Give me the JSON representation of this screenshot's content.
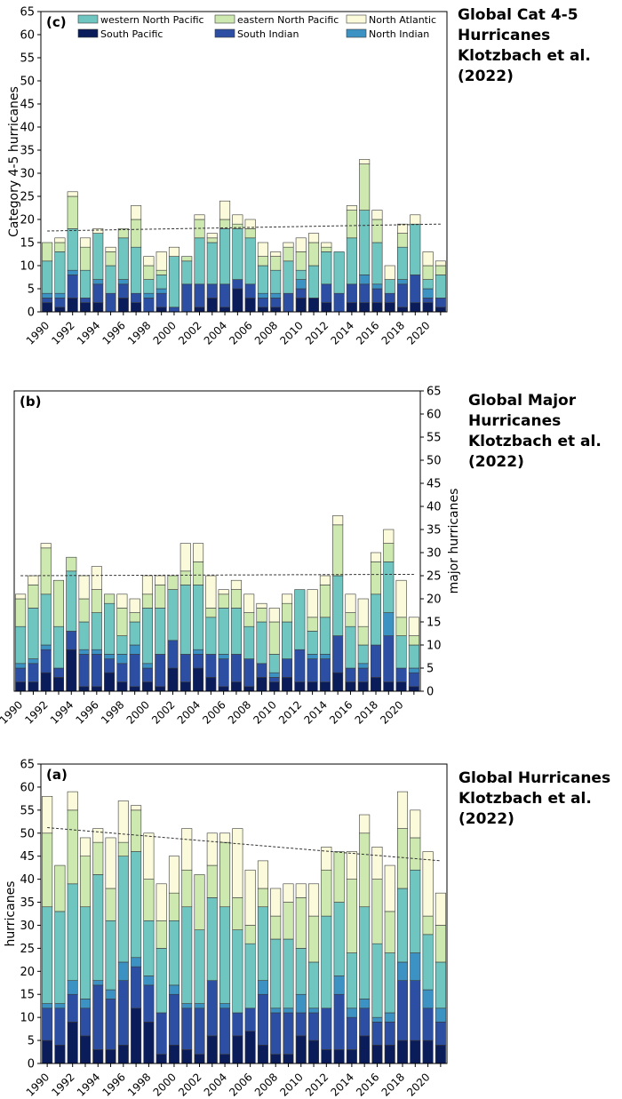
{
  "chart_data": [
    {
      "type": "bar",
      "stacked": true,
      "panel_label": "(c)",
      "side_title": "Global Cat 4-5\nHurricanes\nKlotzbach et al.\n(2022)",
      "xlabel": "",
      "ylabel": "Category 4-5 hurricanes",
      "y_axis_side": "left",
      "legend": "top, three columns",
      "ylim": [
        0,
        65
      ],
      "yticks": [
        0,
        5,
        10,
        15,
        20,
        25,
        30,
        35,
        40,
        45,
        50,
        55,
        60,
        65
      ],
      "trend": [
        17.5,
        19.0
      ],
      "categories": [
        1990,
        1991,
        1992,
        1993,
        1994,
        1995,
        1996,
        1997,
        1998,
        1999,
        2000,
        2001,
        2002,
        2003,
        2004,
        2005,
        2006,
        2007,
        2008,
        2009,
        2010,
        2011,
        2012,
        2013,
        2014,
        2015,
        2016,
        2017,
        2018,
        2019,
        2020,
        2021
      ],
      "xticks": [
        "1990",
        "1992",
        "1994",
        "1996",
        "1998",
        "2000",
        "2002",
        "2004",
        "2006",
        "2008",
        "2010",
        "2012",
        "2014",
        "2016",
        "2018",
        "2020"
      ],
      "series": [
        {
          "name": "South Pacific",
          "color": "#0b1c5a",
          "values": [
            2,
            1,
            3,
            2,
            2,
            0,
            3,
            2,
            0,
            1,
            0,
            0,
            1,
            3,
            1,
            5,
            3,
            1,
            1,
            0,
            3,
            3,
            2,
            0,
            2,
            2,
            2,
            2,
            1,
            2,
            2,
            1
          ]
        },
        {
          "name": "South Indian",
          "color": "#2c4fa3",
          "values": [
            1,
            2,
            5,
            1,
            4,
            4,
            3,
            2,
            3,
            3,
            1,
            6,
            5,
            3,
            5,
            2,
            3,
            2,
            2,
            4,
            2,
            0,
            4,
            4,
            4,
            4,
            3,
            2,
            5,
            6,
            1,
            2
          ]
        },
        {
          "name": "North Indian",
          "color": "#3d92c4",
          "values": [
            1,
            1,
            1,
            0,
            1,
            0,
            1,
            0,
            1,
            1,
            0,
            0,
            0,
            0,
            0,
            0,
            0,
            1,
            1,
            0,
            2,
            0,
            0,
            0,
            0,
            2,
            1,
            0,
            1,
            0,
            2,
            0
          ]
        },
        {
          "name": "western North Pacific",
          "color": "#6fc5c0",
          "values": [
            7,
            9,
            9,
            6,
            10,
            6,
            9,
            10,
            3,
            3,
            11,
            5,
            10,
            9,
            12,
            11,
            10,
            6,
            5,
            7,
            2,
            7,
            7,
            9,
            10,
            14,
            9,
            3,
            7,
            11,
            2,
            5
          ]
        },
        {
          "name": "eastern North Pacific",
          "color": "#cde9b0",
          "values": [
            4,
            2,
            7,
            5,
            0,
            3,
            2,
            6,
            3,
            1,
            0,
            1,
            4,
            1,
            2,
            1,
            2,
            2,
            3,
            3,
            4,
            5,
            1,
            0,
            6,
            10,
            5,
            0,
            3,
            0,
            3,
            2
          ]
        },
        {
          "name": "North Atlantic",
          "color": "#fbfbdc",
          "values": [
            0,
            1,
            1,
            2,
            1,
            1,
            0,
            3,
            2,
            4,
            2,
            0,
            1,
            1,
            4,
            2,
            2,
            3,
            1,
            1,
            3,
            2,
            1,
            0,
            1,
            1,
            2,
            3,
            2,
            2,
            3,
            1
          ]
        }
      ]
    },
    {
      "type": "bar",
      "stacked": true,
      "panel_label": "(b)",
      "side_title": "Global Major\nHurricanes\nKlotzbach et al.\n(2022)",
      "xlabel": "",
      "ylabel": "major hurricanes",
      "y_axis_side": "right",
      "ylim": [
        0,
        65
      ],
      "yticks": [
        0,
        5,
        10,
        15,
        20,
        25,
        30,
        35,
        40,
        45,
        50,
        55,
        60,
        65
      ],
      "trend": [
        25.0,
        25.3
      ],
      "categories": [
        1990,
        1991,
        1992,
        1993,
        1994,
        1995,
        1996,
        1997,
        1998,
        1999,
        2000,
        2001,
        2002,
        2003,
        2004,
        2005,
        2006,
        2007,
        2008,
        2009,
        2010,
        2011,
        2012,
        2013,
        2014,
        2015,
        2016,
        2017,
        2018,
        2019,
        2020,
        2021
      ],
      "xticks": [
        "1990",
        "1992",
        "1994",
        "1996",
        "1998",
        "2000",
        "2002",
        "2004",
        "2006",
        "2008",
        "2010",
        "2012",
        "2014",
        "2016",
        "2018",
        "2020"
      ],
      "series": [
        {
          "name": "South Pacific",
          "color": "#0b1c5a",
          "values": [
            2,
            2,
            4,
            3,
            9,
            1,
            1,
            4,
            2,
            1,
            2,
            1,
            5,
            2,
            5,
            3,
            1,
            2,
            1,
            3,
            2,
            3,
            2,
            2,
            2,
            4,
            2,
            2,
            3,
            2,
            2,
            1
          ]
        },
        {
          "name": "South Indian",
          "color": "#2c4fa3",
          "values": [
            3,
            4,
            5,
            2,
            4,
            7,
            7,
            3,
            4,
            7,
            3,
            7,
            6,
            6,
            3,
            5,
            6,
            6,
            6,
            3,
            1,
            4,
            7,
            5,
            5,
            8,
            3,
            3,
            7,
            10,
            3,
            3
          ]
        },
        {
          "name": "North Indian",
          "color": "#3d92c4",
          "values": [
            1,
            1,
            1,
            0,
            0,
            1,
            1,
            1,
            2,
            2,
            1,
            0,
            0,
            0,
            1,
            0,
            1,
            0,
            0,
            0,
            1,
            0,
            0,
            1,
            1,
            0,
            0,
            1,
            0,
            5,
            0,
            1
          ]
        },
        {
          "name": "western North Pacific",
          "color": "#6fc5c0",
          "values": [
            8,
            11,
            11,
            9,
            13,
            6,
            8,
            11,
            4,
            5,
            12,
            10,
            11,
            15,
            14,
            8,
            10,
            10,
            7,
            9,
            4,
            8,
            13,
            5,
            8,
            13,
            9,
            4,
            11,
            11,
            7,
            5
          ]
        },
        {
          "name": "eastern North Pacific",
          "color": "#cde9b0",
          "values": [
            6,
            5,
            10,
            10,
            3,
            5,
            5,
            2,
            6,
            2,
            3,
            5,
            3,
            3,
            5,
            2,
            3,
            4,
            3,
            3,
            7,
            4,
            0,
            3,
            7,
            11,
            3,
            4,
            7,
            4,
            4,
            2
          ]
        },
        {
          "name": "North Atlantic",
          "color": "#fbfbdc",
          "values": [
            1,
            2,
            1,
            0,
            0,
            5,
            5,
            0,
            3,
            3,
            4,
            2,
            0,
            6,
            4,
            7,
            1,
            2,
            4,
            1,
            3,
            2,
            0,
            6,
            2,
            2,
            4,
            6,
            2,
            3,
            8,
            4
          ]
        }
      ]
    },
    {
      "type": "bar",
      "stacked": true,
      "panel_label": "(a)",
      "side_title": "Global Hurricanes\nKlotzbach et al.\n(2022)",
      "xlabel": "",
      "ylabel": "hurricanes",
      "y_axis_side": "left",
      "ylim": [
        0,
        65
      ],
      "yticks": [
        0,
        5,
        10,
        15,
        20,
        25,
        30,
        35,
        40,
        45,
        50,
        55,
        60,
        65
      ],
      "trend": [
        51.2,
        44.0
      ],
      "categories": [
        1990,
        1991,
        1992,
        1993,
        1994,
        1995,
        1996,
        1997,
        1998,
        1999,
        2000,
        2001,
        2002,
        2003,
        2004,
        2005,
        2006,
        2007,
        2008,
        2009,
        2010,
        2011,
        2012,
        2013,
        2014,
        2015,
        2016,
        2017,
        2018,
        2019,
        2020,
        2021
      ],
      "xticks": [
        "1990",
        "1992",
        "1994",
        "1996",
        "1998",
        "2000",
        "2002",
        "2004",
        "2006",
        "2008",
        "2010",
        "2012",
        "2014",
        "2016",
        "2018",
        "2020"
      ],
      "series": [
        {
          "name": "South Pacific",
          "color": "#0b1c5a",
          "values": [
            5,
            4,
            9,
            6,
            3,
            3,
            4,
            12,
            9,
            2,
            4,
            3,
            2,
            6,
            2,
            6,
            7,
            4,
            2,
            2,
            6,
            5,
            3,
            3,
            3,
            6,
            4,
            4,
            5,
            5,
            5,
            4
          ]
        },
        {
          "name": "South Indian",
          "color": "#2c4fa3",
          "values": [
            7,
            8,
            6,
            6,
            14,
            11,
            14,
            9,
            8,
            9,
            11,
            9,
            10,
            12,
            10,
            5,
            5,
            11,
            9,
            9,
            5,
            6,
            9,
            12,
            7,
            6,
            5,
            5,
            13,
            13,
            7,
            5
          ]
        },
        {
          "name": "North Indian",
          "color": "#3d92c4",
          "values": [
            1,
            1,
            3,
            2,
            1,
            2,
            4,
            2,
            2,
            0,
            2,
            1,
            1,
            0,
            1,
            0,
            0,
            3,
            1,
            1,
            4,
            1,
            0,
            4,
            2,
            2,
            1,
            2,
            4,
            6,
            4,
            3
          ]
        },
        {
          "name": "western North Pacific",
          "color": "#6fc5c0",
          "values": [
            21,
            20,
            21,
            20,
            23,
            15,
            23,
            23,
            12,
            14,
            14,
            21,
            16,
            18,
            21,
            18,
            14,
            16,
            15,
            15,
            10,
            10,
            20,
            16,
            12,
            20,
            16,
            13,
            16,
            18,
            12,
            10
          ]
        },
        {
          "name": "eastern North Pacific",
          "color": "#cde9b0",
          "values": [
            16,
            10,
            16,
            11,
            7,
            7,
            3,
            9,
            9,
            6,
            6,
            8,
            12,
            7,
            14,
            7,
            4,
            4,
            5,
            8,
            11,
            10,
            10,
            11,
            16,
            16,
            14,
            9,
            13,
            7,
            4,
            8
          ]
        },
        {
          "name": "North Atlantic",
          "color": "#fbfbdc",
          "values": [
            8,
            0,
            4,
            4,
            3,
            11,
            9,
            1,
            10,
            8,
            8,
            9,
            0,
            7,
            2,
            15,
            12,
            6,
            6,
            4,
            3,
            7,
            5,
            0,
            6,
            4,
            7,
            10,
            8,
            6,
            14,
            7
          ]
        }
      ]
    }
  ]
}
